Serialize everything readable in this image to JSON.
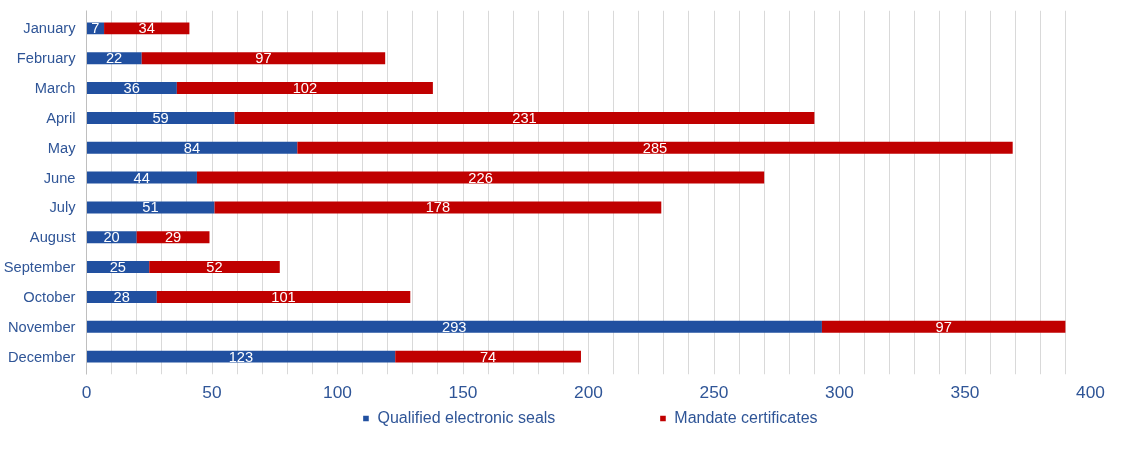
{
  "chart_data": {
    "type": "bar",
    "orientation": "horizontal",
    "stacked": true,
    "data_labels": true,
    "grid": "x",
    "legend": "bottom",
    "categories": [
      "January",
      "February",
      "March",
      "April",
      "May",
      "June",
      "July",
      "August",
      "September",
      "October",
      "November",
      "December"
    ],
    "series": [
      {
        "name": "Qualified electronic seals",
        "color": "#2150a0",
        "values": [
          7,
          22,
          36,
          59,
          84,
          44,
          51,
          20,
          25,
          28,
          293,
          123
        ]
      },
      {
        "name": "Mandate certificates",
        "color": "#c00000",
        "values": [
          34,
          97,
          102,
          231,
          285,
          226,
          178,
          29,
          52,
          101,
          97,
          74
        ]
      }
    ],
    "xlim": [
      0,
      400
    ],
    "xticks": [
      0,
      {
        "value": 10,
        "label": null
      },
      {
        "value": 20,
        "label": null
      },
      {
        "value": 30,
        "label": null
      },
      {
        "value": 40,
        "label": null
      },
      50,
      {
        "value": 60,
        "label": null
      },
      {
        "value": 70,
        "label": null
      },
      {
        "value": 80,
        "label": null
      },
      {
        "value": 90,
        "label": null
      },
      100,
      {
        "value": 110,
        "label": null
      },
      {
        "value": 120,
        "label": null
      },
      {
        "value": 130,
        "label": null
      },
      {
        "value": 140,
        "label": null
      },
      150,
      {
        "value": 160,
        "label": null
      },
      {
        "value": 170,
        "label": null
      },
      {
        "value": 180,
        "label": null
      },
      {
        "value": 190,
        "label": null
      },
      200,
      {
        "value": 210,
        "label": null
      },
      {
        "value": 220,
        "label": null
      },
      {
        "value": 230,
        "label": null
      },
      {
        "value": 240,
        "label": null
      },
      250,
      {
        "value": 260,
        "label": null
      },
      {
        "value": 270,
        "label": null
      },
      {
        "value": 280,
        "label": null
      },
      {
        "value": 290,
        "label": null
      },
      300,
      {
        "value": 310,
        "label": null
      },
      {
        "value": 320,
        "label": null
      },
      {
        "value": 330,
        "label": null
      },
      {
        "value": 340,
        "label": null
      },
      350,
      {
        "value": 360,
        "label": null
      },
      {
        "value": 370,
        "label": null
      },
      {
        "value": 380,
        "label": null
      },
      {
        "value": 390,
        "label": null
      },
      400
    ]
  }
}
